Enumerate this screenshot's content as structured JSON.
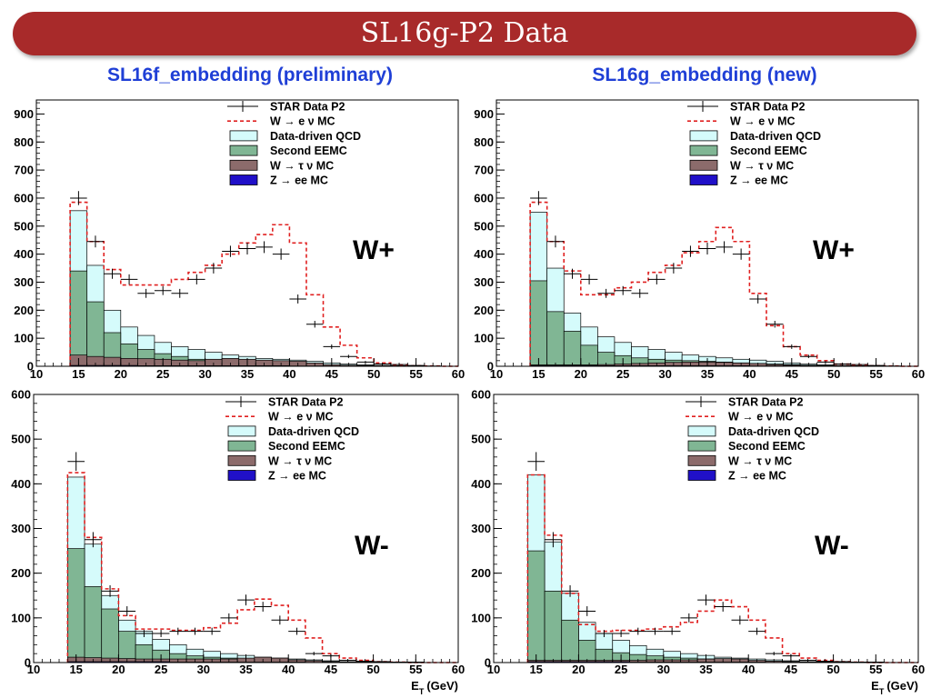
{
  "title": "SL16g-P2 Data",
  "columns": {
    "left": "SL16f_embedding (preliminary)",
    "right": "SL16g_embedding (new)"
  },
  "legend_entries": [
    {
      "label": "STAR Data P2",
      "style": "data"
    },
    {
      "label": "W → e ν MC",
      "style": "dashed",
      "color": "#e02020"
    },
    {
      "label": "Data-driven QCD",
      "style": "fill",
      "color": "#d5fbfb"
    },
    {
      "label": "Second EEMC",
      "style": "fill",
      "color": "#80b694"
    },
    {
      "label": "W → τ ν MC",
      "style": "fill",
      "color": "#8c6b6b"
    },
    {
      "label": "Z → ee MC",
      "style": "fill",
      "color": "#2010c8"
    }
  ],
  "colors": {
    "banner": "#a82a2a",
    "column_titles": "#1f3fd6",
    "w_mc_line": "#e02020"
  },
  "chart_data": [
    {
      "id": "tl",
      "type": "bar",
      "label": "W+",
      "xlabel": "",
      "xlim": [
        10,
        60
      ],
      "ylim": [
        0,
        950
      ],
      "xticks": [
        10,
        15,
        20,
        25,
        30,
        35,
        40,
        45,
        50,
        55,
        60
      ],
      "xtick_labels": [
        "10",
        "15",
        "20",
        "25",
        "30",
        "35",
        "40",
        "45",
        "50",
        "55",
        "60"
      ],
      "yticks": [
        0,
        100,
        200,
        300,
        400,
        500,
        600,
        700,
        800,
        900
      ],
      "ytick_labels": [
        "0",
        "100",
        "200",
        "300",
        "400",
        "500",
        "600",
        "700",
        "800",
        "900"
      ],
      "x_bins": [
        14,
        16,
        18,
        20,
        22,
        24,
        26,
        28,
        30,
        32,
        34,
        36,
        38,
        40,
        42,
        44,
        46,
        48,
        50,
        52,
        54,
        56,
        58,
        60
      ],
      "series": [
        {
          "name": "Z → ee MC",
          "values": [
            3,
            3,
            3,
            3,
            2,
            2,
            2,
            2,
            2,
            2,
            2,
            2,
            2,
            1,
            1,
            1,
            1,
            0,
            0,
            0,
            0,
            0,
            0
          ]
        },
        {
          "name": "W → τ ν MC",
          "values": [
            40,
            35,
            32,
            28,
            27,
            25,
            22,
            20,
            25,
            28,
            25,
            22,
            20,
            18,
            12,
            6,
            4,
            3,
            2,
            1,
            1,
            0,
            0
          ]
        },
        {
          "name": "Second EEMC",
          "values": [
            340,
            230,
            120,
            80,
            60,
            45,
            35,
            25,
            20,
            12,
            10,
            8,
            6,
            5,
            4,
            3,
            2,
            2,
            1,
            1,
            1,
            0,
            0
          ]
        },
        {
          "name": "Data-driven QCD",
          "values": [
            555,
            360,
            200,
            140,
            110,
            85,
            70,
            60,
            50,
            40,
            35,
            28,
            25,
            22,
            18,
            12,
            8,
            5,
            3,
            2,
            1,
            0,
            0
          ]
        },
        {
          "name": "W → e ν MC",
          "values": [
            585,
            445,
            345,
            290,
            290,
            290,
            310,
            335,
            360,
            400,
            440,
            470,
            505,
            440,
            255,
            140,
            75,
            30,
            12,
            5,
            2,
            1,
            0
          ]
        },
        {
          "name": "STAR Data P2",
          "values": [
            600,
            445,
            330,
            310,
            260,
            270,
            260,
            310,
            350,
            410,
            420,
            425,
            400,
            240,
            150,
            70,
            35,
            15,
            8,
            6,
            3,
            1,
            0
          ],
          "errors": [
            25,
            21,
            18,
            18,
            16,
            16,
            16,
            18,
            19,
            20,
            21,
            21,
            20,
            16,
            12,
            8,
            6,
            4,
            3,
            2,
            2,
            1,
            0
          ]
        }
      ]
    },
    {
      "id": "tr",
      "type": "bar",
      "label": "W+",
      "xlabel": "",
      "xlim": [
        10,
        60
      ],
      "ylim": [
        0,
        950
      ],
      "xticks": [
        10,
        15,
        20,
        25,
        30,
        35,
        40,
        45,
        50,
        55,
        60
      ],
      "xtick_labels": [
        "10",
        "15",
        "20",
        "25",
        "30",
        "35",
        "40",
        "45",
        "50",
        "55",
        "60"
      ],
      "yticks": [
        0,
        100,
        200,
        300,
        400,
        500,
        600,
        700,
        800,
        900
      ],
      "ytick_labels": [
        "0",
        "100",
        "200",
        "300",
        "400",
        "500",
        "600",
        "700",
        "800",
        "900"
      ],
      "x_bins": [
        14,
        16,
        18,
        20,
        22,
        24,
        26,
        28,
        30,
        32,
        34,
        36,
        38,
        40,
        42,
        44,
        46,
        48,
        50,
        52,
        54,
        56,
        58,
        60
      ],
      "series": [
        {
          "name": "Z → ee MC",
          "values": [
            3,
            3,
            3,
            3,
            2,
            2,
            2,
            2,
            2,
            2,
            2,
            2,
            2,
            1,
            1,
            1,
            1,
            0,
            0,
            0,
            0,
            0,
            0
          ]
        },
        {
          "name": "W → τ ν MC",
          "values": [
            5,
            5,
            5,
            5,
            6,
            8,
            10,
            12,
            14,
            15,
            15,
            14,
            12,
            10,
            6,
            4,
            2,
            1,
            1,
            0,
            0,
            0,
            0
          ]
        },
        {
          "name": "Second EEMC",
          "values": [
            305,
            195,
            125,
            75,
            50,
            38,
            30,
            25,
            22,
            20,
            18,
            15,
            12,
            10,
            8,
            6,
            4,
            3,
            2,
            1,
            1,
            0,
            0
          ]
        },
        {
          "name": "Data-driven QCD",
          "values": [
            550,
            350,
            190,
            140,
            105,
            85,
            70,
            60,
            50,
            40,
            35,
            30,
            25,
            22,
            18,
            12,
            8,
            5,
            3,
            2,
            1,
            0,
            0
          ]
        },
        {
          "name": "W → e ν MC",
          "values": [
            585,
            445,
            340,
            255,
            255,
            280,
            300,
            335,
            360,
            405,
            445,
            495,
            445,
            260,
            145,
            70,
            40,
            20,
            8,
            5,
            2,
            1,
            0
          ]
        },
        {
          "name": "STAR Data P2",
          "values": [
            600,
            445,
            330,
            310,
            260,
            270,
            260,
            310,
            350,
            410,
            420,
            425,
            400,
            240,
            150,
            70,
            35,
            15,
            8,
            6,
            3,
            1,
            0
          ],
          "errors": [
            25,
            21,
            18,
            18,
            16,
            16,
            16,
            18,
            19,
            20,
            21,
            21,
            20,
            16,
            12,
            8,
            6,
            4,
            3,
            2,
            2,
            1,
            0
          ]
        }
      ]
    },
    {
      "id": "bl",
      "type": "bar",
      "label": "W-",
      "xlabel": "E_T (GeV)",
      "xlim": [
        10,
        60
      ],
      "ylim": [
        0,
        600
      ],
      "xticks": [
        10,
        15,
        20,
        25,
        30,
        35,
        40,
        45,
        50,
        55,
        60
      ],
      "xtick_labels": [
        "10",
        "15",
        "20",
        "25",
        "30",
        "35",
        "40",
        "45",
        "50",
        "55",
        "60"
      ],
      "yticks": [
        0,
        100,
        200,
        300,
        400,
        500,
        600
      ],
      "ytick_labels": [
        "0",
        "100",
        "200",
        "300",
        "400",
        "500",
        "600"
      ],
      "x_bins": [
        14,
        16,
        18,
        20,
        22,
        24,
        26,
        28,
        30,
        32,
        34,
        36,
        38,
        40,
        42,
        44,
        46,
        48,
        50,
        52,
        54,
        56,
        58,
        60
      ],
      "series": [
        {
          "name": "Z → ee MC",
          "values": [
            2,
            2,
            2,
            2,
            2,
            2,
            1,
            1,
            1,
            1,
            1,
            1,
            1,
            1,
            0,
            0,
            0,
            0,
            0,
            0,
            0,
            0,
            0
          ]
        },
        {
          "name": "W → τ ν MC",
          "values": [
            12,
            11,
            10,
            9,
            8,
            8,
            8,
            8,
            8,
            8,
            10,
            12,
            10,
            6,
            4,
            2,
            1,
            1,
            0,
            0,
            0,
            0,
            0
          ]
        },
        {
          "name": "Second EEMC",
          "values": [
            255,
            170,
            120,
            70,
            40,
            28,
            20,
            15,
            12,
            10,
            8,
            6,
            5,
            4,
            3,
            2,
            1,
            1,
            0,
            0,
            0,
            0,
            0
          ]
        },
        {
          "name": "Data-driven QCD",
          "values": [
            415,
            265,
            150,
            95,
            70,
            52,
            40,
            30,
            25,
            20,
            16,
            12,
            10,
            8,
            6,
            4,
            2,
            2,
            1,
            0,
            0,
            0,
            0
          ]
        },
        {
          "name": "W → e ν MC",
          "values": [
            425,
            280,
            165,
            105,
            75,
            75,
            72,
            72,
            78,
            88,
            118,
            142,
            128,
            95,
            55,
            20,
            10,
            5,
            2,
            1,
            0,
            0,
            0
          ]
        },
        {
          "name": "STAR Data P2",
          "values": [
            450,
            275,
            160,
            115,
            65,
            65,
            70,
            70,
            70,
            100,
            140,
            125,
            95,
            70,
            20,
            15,
            5,
            3,
            2,
            1,
            1,
            0,
            0
          ],
          "errors": [
            21,
            17,
            13,
            11,
            8,
            8,
            8,
            8,
            8,
            10,
            12,
            11,
            10,
            8,
            4,
            4,
            2,
            2,
            1,
            1,
            1,
            0,
            0
          ]
        }
      ]
    },
    {
      "id": "br",
      "type": "bar",
      "label": "W-",
      "xlabel": "E_T (GeV)",
      "xlim": [
        10,
        60
      ],
      "ylim": [
        0,
        600
      ],
      "xticks": [
        10,
        15,
        20,
        25,
        30,
        35,
        40,
        45,
        50,
        55,
        60
      ],
      "xtick_labels": [
        "10",
        "15",
        "20",
        "25",
        "30",
        "35",
        "40",
        "45",
        "50",
        "55",
        "60"
      ],
      "yticks": [
        0,
        100,
        200,
        300,
        400,
        500,
        600
      ],
      "ytick_labels": [
        "0",
        "100",
        "200",
        "300",
        "400",
        "500",
        "600"
      ],
      "x_bins": [
        14,
        16,
        18,
        20,
        22,
        24,
        26,
        28,
        30,
        32,
        34,
        36,
        38,
        40,
        42,
        44,
        46,
        48,
        50,
        52,
        54,
        56,
        58,
        60
      ],
      "series": [
        {
          "name": "Z → ee MC",
          "values": [
            2,
            2,
            2,
            2,
            2,
            2,
            1,
            1,
            1,
            1,
            1,
            1,
            1,
            1,
            0,
            0,
            0,
            0,
            0,
            0,
            0,
            0,
            0
          ]
        },
        {
          "name": "W → τ ν MC",
          "values": [
            5,
            5,
            5,
            5,
            5,
            5,
            5,
            6,
            6,
            6,
            8,
            9,
            8,
            5,
            3,
            2,
            1,
            1,
            0,
            0,
            0,
            0,
            0
          ]
        },
        {
          "name": "Second EEMC",
          "values": [
            250,
            160,
            95,
            50,
            30,
            22,
            18,
            15,
            12,
            10,
            8,
            6,
            5,
            4,
            3,
            2,
            1,
            1,
            0,
            0,
            0,
            0,
            0
          ]
        },
        {
          "name": "Data-driven QCD",
          "values": [
            420,
            270,
            155,
            90,
            65,
            50,
            38,
            30,
            25,
            20,
            16,
            12,
            10,
            8,
            6,
            4,
            2,
            2,
            1,
            0,
            0,
            0,
            0
          ]
        },
        {
          "name": "W → e ν MC",
          "values": [
            420,
            285,
            155,
            85,
            70,
            72,
            72,
            75,
            80,
            90,
            115,
            140,
            125,
            95,
            55,
            20,
            10,
            5,
            2,
            1,
            0,
            0,
            0
          ]
        },
        {
          "name": "STAR Data P2",
          "values": [
            450,
            275,
            160,
            115,
            65,
            65,
            70,
            70,
            70,
            100,
            140,
            125,
            95,
            70,
            20,
            15,
            5,
            3,
            2,
            1,
            1,
            0,
            0
          ],
          "errors": [
            21,
            17,
            13,
            11,
            8,
            8,
            8,
            8,
            8,
            10,
            12,
            11,
            10,
            8,
            4,
            4,
            2,
            2,
            1,
            1,
            1,
            0,
            0
          ]
        }
      ]
    }
  ]
}
